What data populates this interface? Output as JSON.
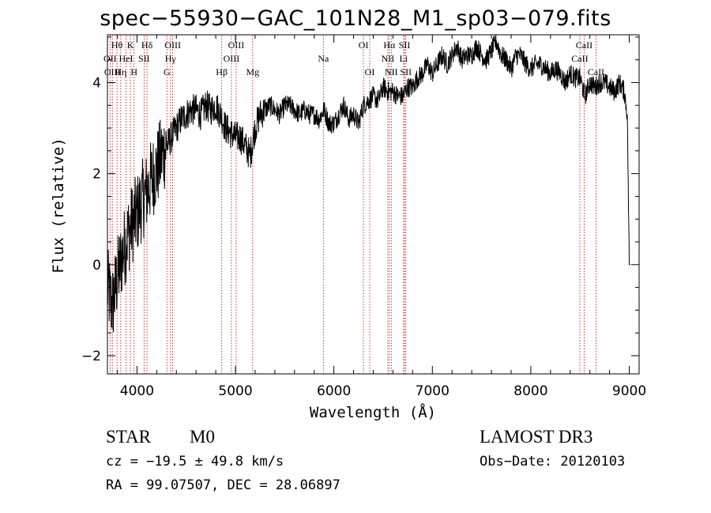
{
  "header": {
    "title": "spec−55930−GAC_101N28_M1_sp03−079.fits"
  },
  "info": {
    "object_class": "STAR",
    "subclass": "M0",
    "cz": "cz = −19.5 ± 49.8 km/s",
    "ra_dec": "RA =  99.07507, DEC =  28.06897",
    "survey": "LAMOST DR3",
    "obs_date": "Obs−Date: 20120103"
  },
  "chart_data": {
    "type": "line",
    "title": "spec−55930−GAC_101N28_M1_sp03−079.fits",
    "xlabel": "Wavelength (Å)",
    "ylabel": "Flux (relative)",
    "xlim": [
      3700,
      9100
    ],
    "ylim": [
      -2.4,
      5.05
    ],
    "xticks": [
      4000,
      5000,
      6000,
      7000,
      8000,
      9000
    ],
    "yticks": [
      -2,
      0,
      2,
      4
    ],
    "ytick_labels": [
      "−2",
      "0",
      "2",
      "4"
    ],
    "grid": false,
    "series": [
      {
        "name": "flux",
        "x": [
          3700,
          3750,
          3800,
          3850,
          3900,
          3950,
          4000,
          4050,
          4100,
          4150,
          4200,
          4250,
          4300,
          4350,
          4400,
          4450,
          4500,
          4550,
          4600,
          4650,
          4700,
          4750,
          4800,
          4850,
          4900,
          4950,
          5000,
          5050,
          5100,
          5150,
          5200,
          5250,
          5300,
          5350,
          5400,
          5450,
          5500,
          5550,
          5600,
          5650,
          5700,
          5750,
          5800,
          5850,
          5900,
          5950,
          6000,
          6050,
          6100,
          6150,
          6200,
          6250,
          6300,
          6350,
          6400,
          6450,
          6500,
          6550,
          6600,
          6650,
          6700,
          6750,
          6800,
          6850,
          6900,
          6950,
          7000,
          7050,
          7100,
          7150,
          7200,
          7250,
          7300,
          7350,
          7400,
          7450,
          7500,
          7550,
          7600,
          7650,
          7700,
          7750,
          7800,
          7850,
          7900,
          7950,
          8000,
          8050,
          8100,
          8150,
          8200,
          8250,
          8300,
          8350,
          8400,
          8450,
          8500,
          8550,
          8600,
          8650,
          8700,
          8750,
          8800,
          8850,
          8900,
          8950,
          8980,
          9000
        ],
        "values": [
          -0.5,
          -0.9,
          -0.3,
          0.2,
          0.6,
          0.9,
          1.1,
          1.4,
          1.6,
          1.9,
          2.1,
          2.4,
          2.6,
          2.8,
          3.0,
          3.2,
          3.3,
          3.4,
          3.4,
          3.3,
          3.5,
          3.4,
          3.5,
          3.3,
          3.0,
          2.9,
          2.8,
          2.8,
          2.6,
          2.4,
          3.0,
          3.3,
          3.4,
          3.5,
          3.4,
          3.3,
          3.5,
          3.5,
          3.4,
          3.3,
          3.4,
          3.3,
          3.3,
          3.2,
          3.4,
          3.1,
          3.1,
          3.3,
          3.5,
          3.2,
          3.3,
          3.1,
          3.5,
          3.6,
          3.7,
          3.6,
          3.9,
          3.8,
          3.8,
          3.7,
          3.7,
          3.9,
          3.9,
          4.1,
          4.2,
          4.4,
          4.2,
          4.4,
          4.6,
          4.4,
          4.6,
          4.8,
          4.5,
          4.6,
          4.6,
          4.8,
          4.6,
          4.5,
          4.7,
          4.9,
          4.6,
          4.5,
          4.3,
          4.6,
          4.6,
          4.4,
          4.3,
          4.4,
          4.4,
          4.3,
          4.2,
          4.3,
          4.2,
          4.0,
          4.2,
          4.1,
          4.1,
          3.7,
          4.0,
          3.9,
          4.0,
          4.0,
          3.9,
          3.8,
          4.0,
          3.8,
          3.3,
          0.0
        ]
      }
    ],
    "lines": [
      {
        "wavelength": 3727,
        "label": "OII",
        "row": 1
      },
      {
        "wavelength": 3750,
        "label": "OIII",
        "row": 2
      },
      {
        "wavelength": 3797,
        "label": "Hθ",
        "row": 0
      },
      {
        "wavelength": 3835,
        "label": "Hη",
        "row": 2
      },
      {
        "wavelength": 3889,
        "label": "HeI",
        "row": 1
      },
      {
        "wavelength": 3933,
        "label": "K",
        "row": 0
      },
      {
        "wavelength": 3970,
        "label": "H",
        "row": 2
      },
      {
        "wavelength": 4072,
        "label": "SII",
        "row": 1
      },
      {
        "wavelength": 4102,
        "label": "Hδ",
        "row": 0
      },
      {
        "wavelength": 4304,
        "label": "G",
        "row": 2
      },
      {
        "wavelength": 4340,
        "label": "Hγ",
        "row": 1
      },
      {
        "wavelength": 4363,
        "label": "OIII",
        "row": 0
      },
      {
        "wavelength": 4861,
        "label": "Hβ",
        "row": 2
      },
      {
        "wavelength": 4959,
        "label": "OIII",
        "row": 1
      },
      {
        "wavelength": 5007,
        "label": "OIII",
        "row": 0
      },
      {
        "wavelength": 5175,
        "label": "Mg",
        "row": 2
      },
      {
        "wavelength": 5893,
        "label": "Na",
        "row": 1
      },
      {
        "wavelength": 6300,
        "label": "OI",
        "row": 0
      },
      {
        "wavelength": 6364,
        "label": "OI",
        "row": 2
      },
      {
        "wavelength": 6548,
        "label": "NII",
        "row": 1
      },
      {
        "wavelength": 6563,
        "label": "Hα",
        "row": 0
      },
      {
        "wavelength": 6583,
        "label": "NII",
        "row": 2
      },
      {
        "wavelength": 6708,
        "label": "Li",
        "row": 1
      },
      {
        "wavelength": 6717,
        "label": "SII",
        "row": 0
      },
      {
        "wavelength": 6731,
        "label": "SII",
        "row": 2
      },
      {
        "wavelength": 8498,
        "label": "CaII",
        "row": 1
      },
      {
        "wavelength": 8542,
        "label": "CaII",
        "row": 0
      },
      {
        "wavelength": 8662,
        "label": "CaII",
        "row": 2
      }
    ]
  },
  "colors": {
    "line": "#000000",
    "marker": "#cc0000",
    "axis": "#000000"
  }
}
